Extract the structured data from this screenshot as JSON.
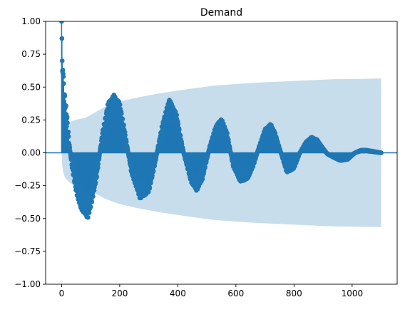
{
  "chart_data": {
    "type": "acf",
    "title": "Demand",
    "xlabel": "",
    "ylabel": "",
    "xlim": [
      -55,
      1155
    ],
    "ylim": [
      -1.0,
      1.0
    ],
    "xticks": [
      0,
      200,
      400,
      600,
      800,
      1000
    ],
    "xtick_labels": [
      "0",
      "200",
      "400",
      "600",
      "800",
      "1000"
    ],
    "yticks": [
      -1.0,
      -0.75,
      -0.5,
      -0.25,
      0.0,
      0.25,
      0.5,
      0.75,
      1.0
    ],
    "ytick_labels": [
      "−1.00",
      "−0.75",
      "−0.50",
      "−0.25",
      "0.00",
      "0.25",
      "0.50",
      "0.75",
      "1.00"
    ],
    "max_lag": 1100,
    "series_color": "#1f77b4",
    "band_color": "#1f77b4",
    "acf_envelope": {
      "lag": [
        0,
        1,
        2,
        3,
        4,
        5,
        6,
        8,
        10,
        15,
        20,
        25,
        35,
        50,
        65,
        80,
        90,
        100,
        120,
        140,
        160,
        180,
        200,
        215,
        240,
        270,
        300,
        320,
        345,
        370,
        395,
        420,
        445,
        465,
        485,
        510,
        530,
        550,
        570,
        590,
        615,
        640,
        660,
        680,
        700,
        720,
        735,
        755,
        775,
        800,
        820,
        840,
        860,
        880,
        895,
        915,
        940,
        960,
        985,
        1010,
        1030,
        1050,
        1075,
        1100
      ],
      "value": [
        1.0,
        0.87,
        0.7,
        0.62,
        0.63,
        0.6,
        0.58,
        0.52,
        0.46,
        0.36,
        0.25,
        0.1,
        -0.1,
        -0.3,
        -0.42,
        -0.47,
        -0.5,
        -0.42,
        -0.2,
        0.15,
        0.38,
        0.44,
        0.38,
        0.2,
        -0.15,
        -0.35,
        -0.3,
        -0.1,
        0.2,
        0.41,
        0.3,
        0.0,
        -0.22,
        -0.29,
        -0.2,
        0.05,
        0.2,
        0.26,
        0.15,
        -0.1,
        -0.22,
        -0.2,
        -0.1,
        0.05,
        0.18,
        0.22,
        0.15,
        0.0,
        -0.15,
        -0.12,
        0.0,
        0.08,
        0.12,
        0.1,
        0.05,
        -0.01,
        -0.04,
        -0.06,
        -0.05,
        0.0,
        0.02,
        0.02,
        0.01,
        0.0
      ]
    },
    "confidence_band": {
      "lag": [
        0,
        2,
        5,
        10,
        20,
        35,
        55,
        80,
        110,
        150,
        200,
        260,
        330,
        420,
        520,
        640,
        780,
        940,
        1100
      ],
      "value": [
        0.0,
        0.1,
        0.14,
        0.18,
        0.21,
        0.24,
        0.255,
        0.265,
        0.3,
        0.35,
        0.39,
        0.42,
        0.45,
        0.48,
        0.51,
        0.53,
        0.545,
        0.56,
        0.565
      ]
    }
  }
}
